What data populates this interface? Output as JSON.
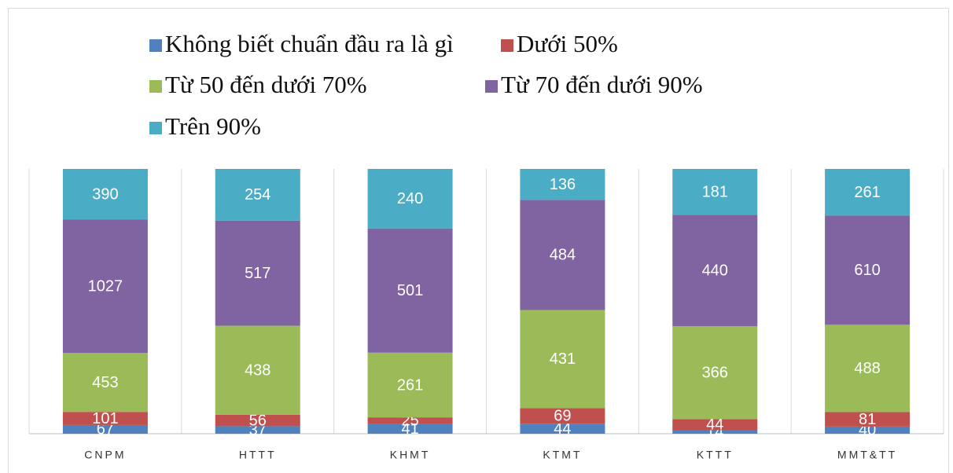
{
  "chart_data": {
    "type": "bar",
    "stacking": "percent",
    "categories": [
      "CNPM",
      "HTTT",
      "KHMT",
      "KTMT",
      "KTTT",
      "MMT&TT"
    ],
    "series": [
      {
        "name": "Không biết chuẩn đầu ra là gì",
        "color": "#4f81bd",
        "values": [
          67,
          37,
          41,
          44,
          14,
          40
        ]
      },
      {
        "name": "Dưới 50%",
        "color": "#c0504d",
        "values": [
          101,
          56,
          25,
          69,
          44,
          81
        ]
      },
      {
        "name": "Từ 50 đến dưới 70%",
        "color": "#9bbb59",
        "values": [
          453,
          438,
          261,
          431,
          366,
          488
        ]
      },
      {
        "name": "Từ 70 đến dưới 90%",
        "color": "#8064a2",
        "values": [
          1027,
          517,
          501,
          484,
          440,
          610
        ]
      },
      {
        "name": "Trên 90%",
        "color": "#4bacc6",
        "values": [
          390,
          254,
          240,
          136,
          181,
          261
        ]
      }
    ]
  }
}
